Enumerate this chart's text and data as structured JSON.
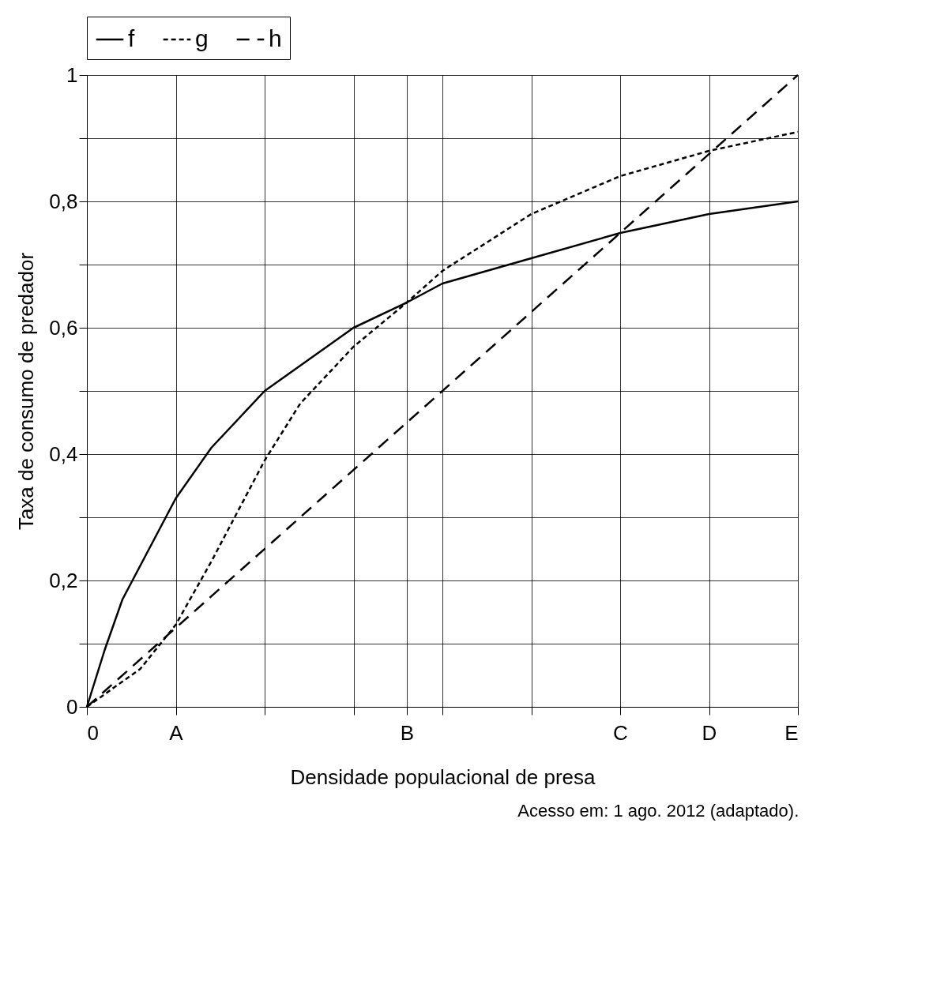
{
  "chart_data": {
    "type": "line",
    "xlabel": "Densidade populacional de presa",
    "ylabel": "Taxa de consumo de predador",
    "annotations": [
      "Acesso em: 1 ago. 2012 (adaptado)."
    ],
    "categories": [
      "0",
      null,
      null,
      null,
      null,
      "A",
      null,
      null,
      null,
      null,
      null,
      null,
      null,
      null,
      null,
      null,
      null,
      null,
      "B",
      null,
      null,
      null,
      null,
      null,
      null,
      null,
      null,
      null,
      null,
      null,
      "C",
      null,
      null,
      null,
      null,
      "D",
      null,
      null,
      null,
      null,
      "E"
    ],
    "ylim": [
      0,
      1
    ],
    "yticks": [
      0,
      {
        "value": 0.1,
        "label": null
      },
      {
        "value": 0.2,
        "label": "0,2"
      },
      {
        "value": 0.3,
        "label": null
      },
      {
        "value": 0.4,
        "label": "0,4"
      },
      {
        "value": 0.5,
        "label": null
      },
      {
        "value": 0.6,
        "label": "0,6"
      },
      {
        "value": 0.7,
        "label": null
      },
      {
        "value": 0.8,
        "label": "0,8"
      },
      {
        "value": 0.9,
        "label": null
      },
      1
    ],
    "grid": true,
    "legend": "top",
    "marker": "none",
    "series": [
      {
        "name": "f",
        "color": "#000000",
        "line_style": "solid",
        "values": [
          0,
          0.09,
          0.17,
          null,
          null,
          0.33,
          null,
          0.41,
          null,
          null,
          0.5,
          null,
          null,
          null,
          null,
          0.6,
          null,
          null,
          0.64,
          null,
          0.67,
          null,
          null,
          null,
          null,
          0.71,
          null,
          null,
          null,
          null,
          0.75,
          null,
          null,
          null,
          null,
          0.78,
          null,
          null,
          null,
          null,
          0.8
        ]
      },
      {
        "name": "g",
        "color": "#000000",
        "line_style": "dashed",
        "values": [
          0,
          null,
          null,
          0.06,
          null,
          0.13,
          null,
          0.23,
          null,
          null,
          0.39,
          null,
          0.48,
          null,
          null,
          0.57,
          null,
          null,
          0.64,
          null,
          0.69,
          null,
          null,
          null,
          null,
          0.78,
          null,
          null,
          null,
          null,
          0.84,
          null,
          null,
          null,
          null,
          0.88,
          null,
          null,
          null,
          null,
          0.91
        ]
      },
      {
        "name": "h",
        "color": "#000000",
        "line_style": "dashed",
        "values": [
          0,
          null,
          null,
          null,
          null,
          null,
          null,
          null,
          null,
          null,
          null,
          null,
          null,
          null,
          null,
          null,
          null,
          null,
          null,
          null,
          null,
          null,
          null,
          null,
          null,
          null,
          null,
          null,
          null,
          null,
          null,
          null,
          null,
          null,
          null,
          null,
          null,
          null,
          null,
          null,
          1
        ]
      }
    ]
  }
}
